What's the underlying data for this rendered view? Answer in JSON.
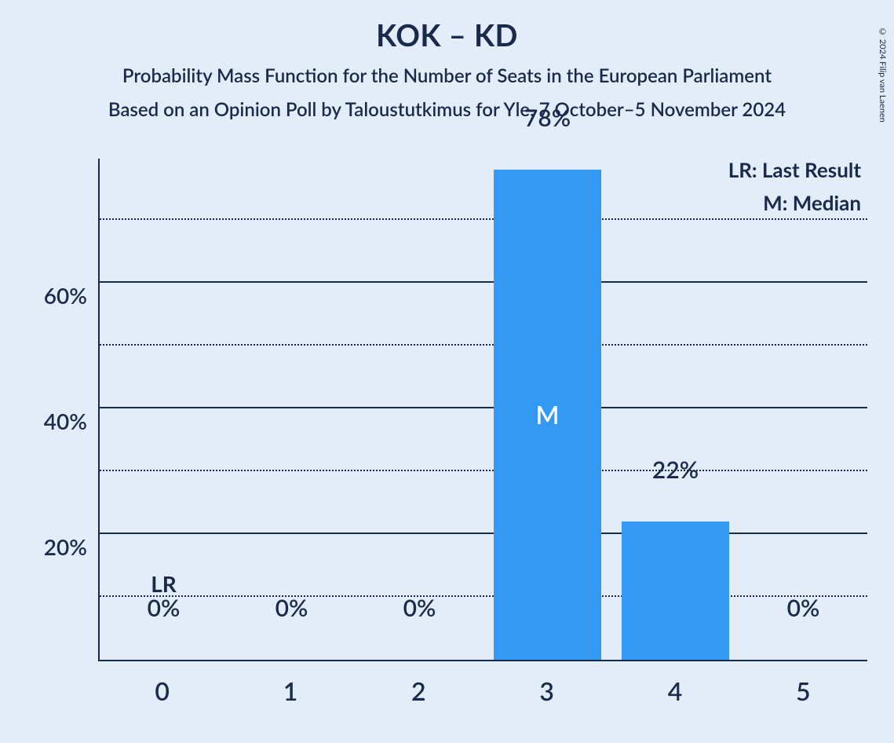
{
  "copyright": "© 2024 Filip van Laenen",
  "title": "KOK – KD",
  "subtitle1": "Probability Mass Function for the Number of Seats in the European Parliament",
  "subtitle2": "Based on an Opinion Poll by Taloustutkimus for Yle, 7 October–5 November 2024",
  "legend": {
    "lr": "LR: Last Result",
    "m": "M: Median"
  },
  "chart": {
    "type": "bar",
    "background_color": "#e3edfa",
    "axis_color": "#1a2a4a",
    "text_color": "#1a2a4a",
    "bar_color": "#3399f3",
    "y_max": 80,
    "y_major_ticks": [
      20,
      40,
      60
    ],
    "y_minor_ticks": [
      10,
      30,
      50,
      70
    ],
    "y_tick_labels": {
      "20": "20%",
      "40": "40%",
      "60": "60%"
    },
    "categories": [
      "0",
      "1",
      "2",
      "3",
      "4",
      "5"
    ],
    "values": [
      0,
      0,
      0,
      78,
      22,
      0
    ],
    "value_labels": [
      "0%",
      "0%",
      "0%",
      "78%",
      "22%",
      "0%"
    ],
    "lr_index": 0,
    "lr_text": "LR",
    "median_index": 3,
    "median_text": "M",
    "title_fontsize": 38,
    "subtitle_fontsize": 24,
    "axis_label_fontsize": 28,
    "value_label_fontsize": 30,
    "x_label_fontsize": 32,
    "bar_width_ratio": 0.84
  }
}
